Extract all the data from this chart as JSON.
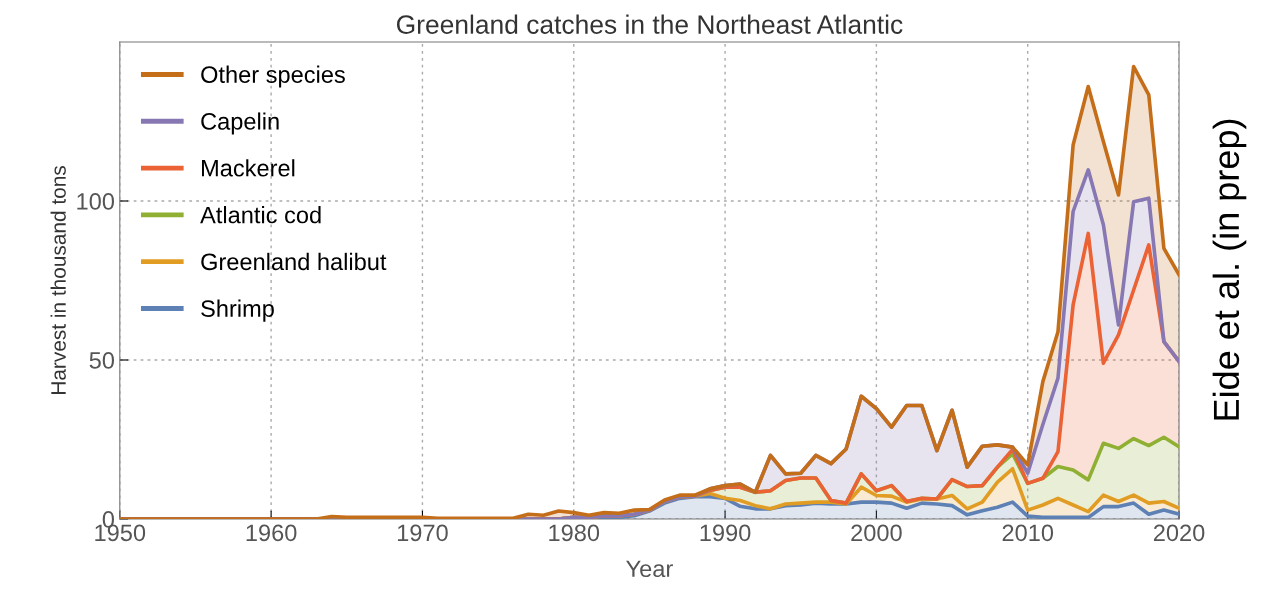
{
  "chart_data": {
    "type": "area",
    "stacked": true,
    "title": "Greenland catches in the Northeast Atlantic",
    "xlabel": "Year",
    "ylabel": "Harvest in thousand tons",
    "annotations": [
      "Eide et al. (in prep)"
    ],
    "x": [
      1950,
      1951,
      1952,
      1953,
      1954,
      1955,
      1956,
      1957,
      1958,
      1959,
      1960,
      1961,
      1962,
      1963,
      1964,
      1965,
      1966,
      1967,
      1968,
      1969,
      1970,
      1971,
      1972,
      1973,
      1974,
      1975,
      1976,
      1977,
      1978,
      1979,
      1980,
      1981,
      1982,
      1983,
      1984,
      1985,
      1986,
      1987,
      1988,
      1989,
      1990,
      1991,
      1992,
      1993,
      1994,
      1995,
      1996,
      1997,
      1998,
      1999,
      2000,
      2001,
      2002,
      2003,
      2004,
      2005,
      2006,
      2007,
      2008,
      2009,
      2010,
      2011,
      2012,
      2013,
      2014,
      2015,
      2016,
      2017,
      2018,
      2019,
      2020
    ],
    "xlim": [
      1950,
      2020
    ],
    "xticks": [
      1950,
      1960,
      1970,
      1980,
      1990,
      2000,
      2010,
      2020
    ],
    "ylim": [
      0,
      150
    ],
    "yticks": [
      0,
      50,
      100
    ],
    "grid": true,
    "legend": "top left",
    "series": [
      {
        "name": "Shrimp",
        "color": "#5e81b5",
        "values": [
          0,
          0,
          0,
          0,
          0,
          0,
          0,
          0,
          0,
          0,
          0,
          0,
          0,
          0,
          0,
          0,
          0,
          0,
          0,
          0,
          0,
          0,
          0,
          0,
          0,
          0,
          0,
          0,
          0,
          0,
          0,
          0,
          0,
          0.5,
          1,
          2.5,
          5,
          6.5,
          7,
          7,
          6.5,
          4,
          3.2,
          3.2,
          4.2,
          4.4,
          5.0,
          4.7,
          4.7,
          5.3,
          5.3,
          5.0,
          3.4,
          5.0,
          4.7,
          4.2,
          1.3,
          2.6,
          3.7,
          5.3,
          0.9,
          0.5,
          0.5,
          0.5,
          0.5,
          3.9,
          3.9,
          5.0,
          1.5,
          2.8,
          1.5
        ]
      },
      {
        "name": "Greenland halibut",
        "color": "#e19c24",
        "values": [
          0,
          0,
          0,
          0,
          0,
          0,
          0,
          0,
          0,
          0,
          0,
          0,
          0,
          0,
          0,
          0,
          0,
          0,
          0,
          0,
          0,
          0,
          0,
          0,
          0,
          0,
          0,
          0,
          0,
          0,
          0.5,
          0.5,
          1,
          0.5,
          0.5,
          0.3,
          0.5,
          0.5,
          0.2,
          1,
          0,
          1.8,
          1.0,
          0,
          0.5,
          0.6,
          0.3,
          0.6,
          0,
          4.7,
          2.1,
          2.2,
          1.9,
          1.3,
          1.6,
          3.2,
          1.9,
          2.7,
          7.9,
          10.5,
          1.9,
          3.9,
          6.0,
          3.9,
          1.8,
          3.6,
          1.6,
          2.5,
          3.5,
          2.7,
          1.9
        ]
      },
      {
        "name": "Atlantic cod",
        "color": "#8fb032",
        "values": [
          0,
          0,
          0,
          0,
          0,
          0,
          0,
          0,
          0,
          0,
          0,
          0,
          0,
          0,
          0,
          0,
          0,
          0,
          0,
          0,
          0,
          0,
          0,
          0,
          0,
          0,
          0,
          0,
          0,
          0,
          0,
          0,
          0,
          0,
          0,
          0,
          0,
          0,
          0,
          1,
          3.5,
          4.2,
          4.2,
          5.7,
          7.4,
          7.9,
          7.6,
          0.5,
          0.3,
          4.2,
          1.5,
          3.3,
          0.2,
          0.2,
          0,
          5.0,
          7.0,
          5.2,
          4.7,
          4.7,
          8.4,
          8.4,
          10.0,
          11.0,
          10.0,
          16.3,
          16.7,
          17.8,
          18.1,
          20.2,
          19.3
        ]
      },
      {
        "name": "Mackerel",
        "color": "#eb6235",
        "values": [
          0,
          0,
          0,
          0,
          0,
          0,
          0,
          0,
          0,
          0,
          0,
          0,
          0,
          0,
          0,
          0,
          0,
          0,
          0,
          0,
          0,
          0,
          0,
          0,
          0,
          0,
          0,
          0,
          0,
          0,
          0,
          0,
          0,
          0,
          0,
          0,
          0,
          0,
          0,
          0,
          0,
          0,
          0,
          0,
          0,
          0,
          0,
          0,
          0,
          0,
          0,
          0,
          0,
          0,
          0,
          0,
          0,
          0,
          0,
          1.4,
          0,
          0,
          4.7,
          51.9,
          77.5,
          25.2,
          35.7,
          46.7,
          63.1,
          30.1,
          26.8
        ]
      },
      {
        "name": "Capelin",
        "color": "#8778b3",
        "values": [
          0,
          0,
          0,
          0,
          0,
          0,
          0,
          0,
          0,
          0,
          0,
          0,
          0,
          0,
          0,
          0,
          0,
          0,
          0,
          0,
          0,
          0,
          0,
          0,
          0,
          0,
          0,
          0,
          0,
          0,
          0,
          0,
          0,
          0,
          0,
          0,
          0,
          0,
          0,
          0.5,
          0.5,
          1.0,
          0,
          11.1,
          2.1,
          1.5,
          7.1,
          11.6,
          17.0,
          24.4,
          25.8,
          18.4,
          30.2,
          29.2,
          15.2,
          21.8,
          6.1,
          12.4,
          7.0,
          0.7,
          3.2,
          16.9,
          23.1,
          29.4,
          20.0,
          43.5,
          3.1,
          27.8,
          14.7,
          0,
          0
        ]
      },
      {
        "name": "Other species",
        "color": "#c56e1a",
        "values": [
          0,
          0,
          0,
          0,
          0,
          0,
          0,
          0,
          0,
          0,
          0,
          0,
          0,
          0,
          0.8,
          0.5,
          0.5,
          0.5,
          0.5,
          0.5,
          0.5,
          0.2,
          0.2,
          0.2,
          0.2,
          0.2,
          0.2,
          1.5,
          1.2,
          2.5,
          1.5,
          0.7,
          1.0,
          0.8,
          1.3,
          0.2,
          0.5,
          0.5,
          0.3,
          0,
          0,
          0,
          0,
          0,
          0,
          0,
          0,
          0,
          0,
          0,
          0,
          0,
          0,
          0,
          0,
          0,
          0,
          0,
          0,
          0,
          2.6,
          13.5,
          14.6,
          20.9,
          26.2,
          26.2,
          40.9,
          42.5,
          32.5,
          29.3,
          27.3
        ]
      }
    ]
  }
}
